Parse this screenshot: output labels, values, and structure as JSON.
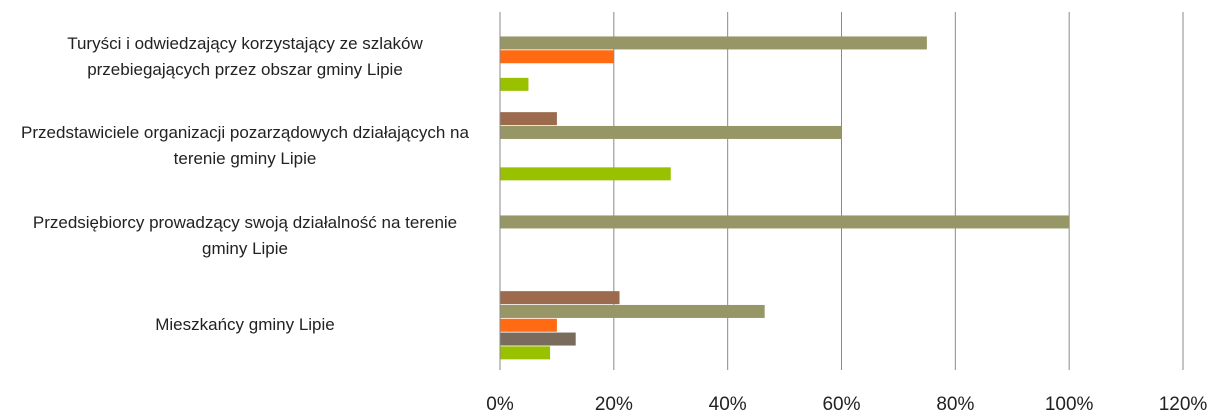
{
  "chart_data": {
    "type": "bar",
    "orientation": "horizontal",
    "categories": [
      "Turyści i odwiedzający korzystający ze szlaków przebiegających przez obszar gminy Lipie",
      "Przedstawiciele organizacji pozarządowych działających na terenie gminy Lipie",
      "Przedsiębiorcy prowadzący swoją działalność na terenie gminy Lipie",
      "Mieszkańcy gminy Lipie"
    ],
    "series": [
      {
        "color": "#9c6b4e",
        "values": [
          0,
          10,
          0,
          21
        ]
      },
      {
        "color": "#969666",
        "values": [
          75,
          60,
          100,
          46.5
        ]
      },
      {
        "color": "#ff6a13",
        "values": [
          20,
          0,
          0,
          10
        ]
      },
      {
        "color": "#7a6c5d",
        "values": [
          0,
          0,
          0,
          13.3
        ]
      },
      {
        "color": "#99c100",
        "values": [
          5,
          30,
          0,
          8.8
        ]
      }
    ],
    "xlim": [
      0,
      120
    ],
    "xticks": [
      {
        "value": 0,
        "label": "0%"
      },
      {
        "value": 20,
        "label": "20%"
      },
      {
        "value": 40,
        "label": "40%"
      },
      {
        "value": 60,
        "label": "60%"
      },
      {
        "value": 80,
        "label": "80%"
      },
      {
        "value": 100,
        "label": "100%"
      },
      {
        "value": 120,
        "label": "120%"
      }
    ],
    "grid": true
  }
}
